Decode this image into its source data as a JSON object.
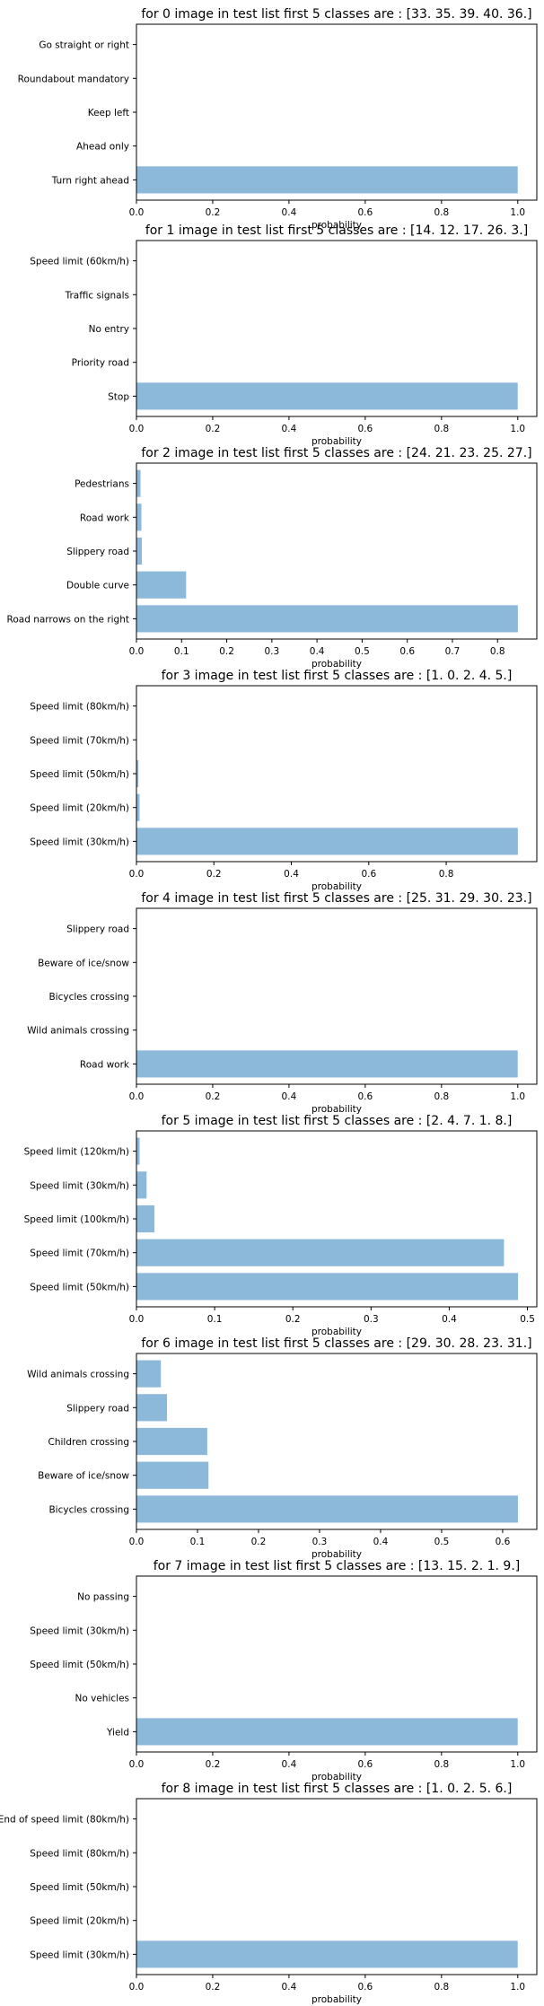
{
  "style": {
    "bar_color": "#8cb8da",
    "axis_color": "#000000",
    "background": "#ffffff"
  },
  "chart_data": [
    {
      "type": "bar",
      "orientation": "horizontal",
      "title": "for 0 image in test list first 5 classes are : [33. 35. 39. 40. 36.]",
      "xlabel": "probability",
      "ylabel": "",
      "categories": [
        "Turn right ahead",
        "Ahead only",
        "Keep left",
        "Roundabout mandatory",
        "Go straight or right"
      ],
      "values": [
        0.9999,
        5e-05,
        3e-05,
        1e-05,
        1e-05
      ],
      "xlim": [
        0,
        1.05
      ],
      "xticks": [
        0.0,
        0.2,
        0.4,
        0.6,
        0.8,
        1.0
      ],
      "tick_decimals": 1,
      "grid": false
    },
    {
      "type": "bar",
      "orientation": "horizontal",
      "title": "for 1 image in test list first 5 classes are : [14. 12. 17. 26.  3.]",
      "xlabel": "probability",
      "ylabel": "",
      "categories": [
        "Stop",
        "Priority road",
        "No entry",
        "Traffic signals",
        "Speed limit (60km/h)"
      ],
      "values": [
        0.9999,
        5e-05,
        3e-05,
        1e-05,
        1e-05
      ],
      "xlim": [
        0,
        1.05
      ],
      "xticks": [
        0.0,
        0.2,
        0.4,
        0.6,
        0.8,
        1.0
      ],
      "tick_decimals": 1,
      "grid": false
    },
    {
      "type": "bar",
      "orientation": "horizontal",
      "title": "for 2 image in test list first 5 classes are : [24. 21. 23. 25. 27.]",
      "xlabel": "probability",
      "ylabel": "",
      "categories": [
        "Road narrows on the right",
        "Double curve",
        "Slippery road",
        "Road work",
        "Pedestrians"
      ],
      "values": [
        0.845,
        0.11,
        0.012,
        0.011,
        0.009
      ],
      "xlim": [
        0,
        0.887
      ],
      "xticks": [
        0.0,
        0.1,
        0.2,
        0.3,
        0.4,
        0.5,
        0.6,
        0.7,
        0.8
      ],
      "tick_decimals": 1,
      "grid": false
    },
    {
      "type": "bar",
      "orientation": "horizontal",
      "title": "for 3 image in test list first 5 classes are : [1. 0. 2. 4. 5.]",
      "xlabel": "probability",
      "ylabel": "",
      "categories": [
        "Speed limit (30km/h)",
        "Speed limit (20km/h)",
        "Speed limit (50km/h)",
        "Speed limit (70km/h)",
        "Speed limit (80km/h)"
      ],
      "values": [
        0.985,
        0.008,
        0.005,
        0.001,
        0.0005
      ],
      "xlim": [
        0,
        1.034
      ],
      "xticks": [
        0.0,
        0.2,
        0.4,
        0.6,
        0.8
      ],
      "tick_decimals": 1,
      "grid": false
    },
    {
      "type": "bar",
      "orientation": "horizontal",
      "title": "for 4 image in test list first 5 classes are : [25. 31. 29. 30. 23.]",
      "xlabel": "probability",
      "ylabel": "",
      "categories": [
        "Road work",
        "Wild animals crossing",
        "Bicycles crossing",
        "Beware of ice/snow",
        "Slippery road"
      ],
      "values": [
        0.9999,
        5e-05,
        3e-05,
        1e-05,
        1e-05
      ],
      "xlim": [
        0,
        1.05
      ],
      "xticks": [
        0.0,
        0.2,
        0.4,
        0.6,
        0.8,
        1.0
      ],
      "tick_decimals": 1,
      "grid": false
    },
    {
      "type": "bar",
      "orientation": "horizontal",
      "title": "for 5 image in test list first 5 classes are : [2. 4. 7. 1. 8.]",
      "xlabel": "probability",
      "ylabel": "",
      "categories": [
        "Speed limit (50km/h)",
        "Speed limit (70km/h)",
        "Speed limit (100km/h)",
        "Speed limit (30km/h)",
        "Speed limit (120km/h)"
      ],
      "values": [
        0.488,
        0.47,
        0.023,
        0.013,
        0.004
      ],
      "xlim": [
        0,
        0.512
      ],
      "xticks": [
        0.0,
        0.1,
        0.2,
        0.3,
        0.4,
        0.5
      ],
      "tick_decimals": 1,
      "grid": false
    },
    {
      "type": "bar",
      "orientation": "horizontal",
      "title": "for 6 image in test list first 5 classes are : [29. 30. 28. 23. 31.]",
      "xlabel": "probability",
      "ylabel": "",
      "categories": [
        "Bicycles crossing",
        "Beware of ice/snow",
        "Children crossing",
        "Slippery road",
        "Wild animals crossing"
      ],
      "values": [
        0.625,
        0.118,
        0.116,
        0.05,
        0.04
      ],
      "xlim": [
        0,
        0.656
      ],
      "xticks": [
        0.0,
        0.1,
        0.2,
        0.3,
        0.4,
        0.5,
        0.6
      ],
      "tick_decimals": 1,
      "grid": false
    },
    {
      "type": "bar",
      "orientation": "horizontal",
      "title": "for 7 image in test list first 5 classes are : [13. 15.  2.  1.  9.]",
      "xlabel": "probability",
      "ylabel": "",
      "categories": [
        "Yield",
        "No vehicles",
        "Speed limit (50km/h)",
        "Speed limit (30km/h)",
        "No passing"
      ],
      "values": [
        0.9999,
        5e-05,
        3e-05,
        1e-05,
        1e-05
      ],
      "xlim": [
        0,
        1.05
      ],
      "xticks": [
        0.0,
        0.2,
        0.4,
        0.6,
        0.8,
        1.0
      ],
      "tick_decimals": 1,
      "grid": false
    },
    {
      "type": "bar",
      "orientation": "horizontal",
      "title": "for 8 image in test list first 5 classes are : [1. 0. 2. 5. 6.]",
      "xlabel": "probability",
      "ylabel": "",
      "categories": [
        "Speed limit (30km/h)",
        "Speed limit (20km/h)",
        "Speed limit (50km/h)",
        "Speed limit (80km/h)",
        "End of speed limit (80km/h)"
      ],
      "values": [
        0.9999,
        5e-05,
        3e-05,
        1e-05,
        1e-05
      ],
      "xlim": [
        0,
        1.05
      ],
      "xticks": [
        0.0,
        0.2,
        0.4,
        0.6,
        0.8,
        1.0
      ],
      "tick_decimals": 1,
      "grid": false
    }
  ]
}
